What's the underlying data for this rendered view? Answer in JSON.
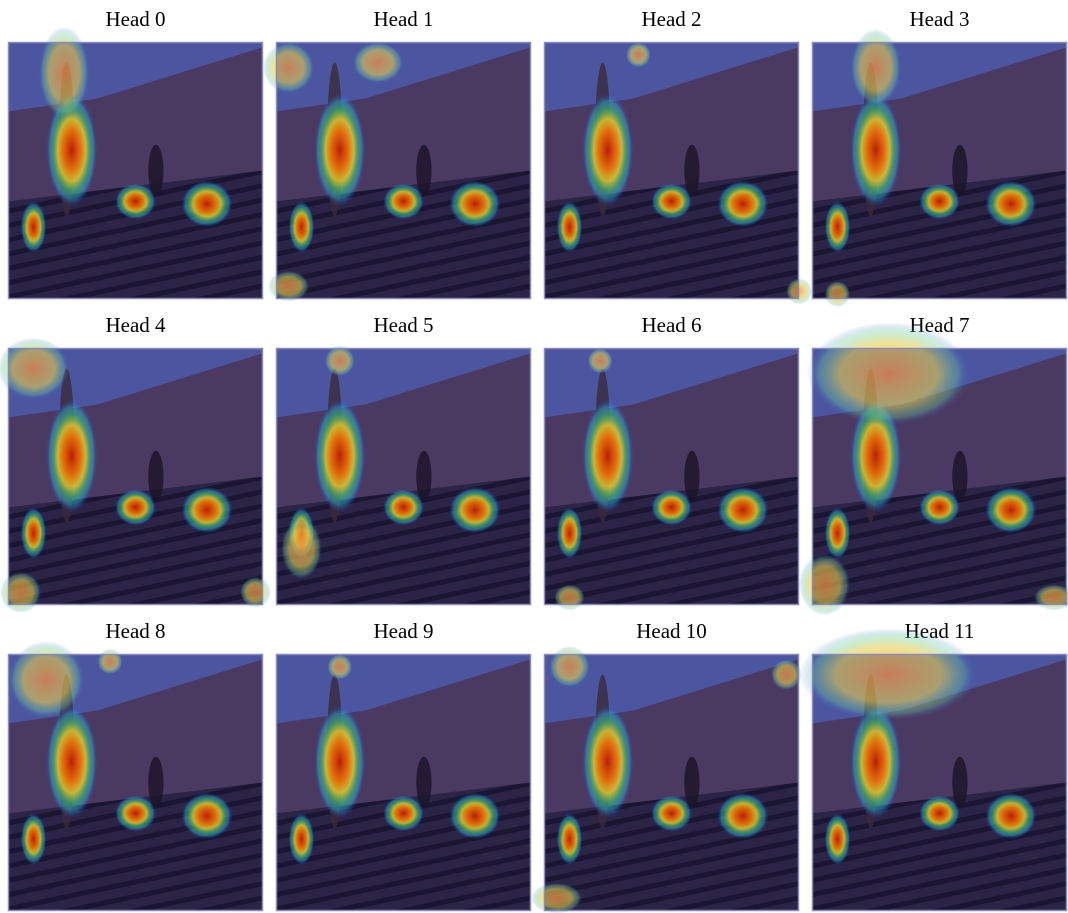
{
  "panels": [
    "Head 0",
    "Head 1",
    "Head 2",
    "Head 3",
    "Head 4",
    "Head 5",
    "Head 6",
    "Head 7",
    "Head 8",
    "Head 9",
    "Head 10",
    "Head 11"
  ]
}
